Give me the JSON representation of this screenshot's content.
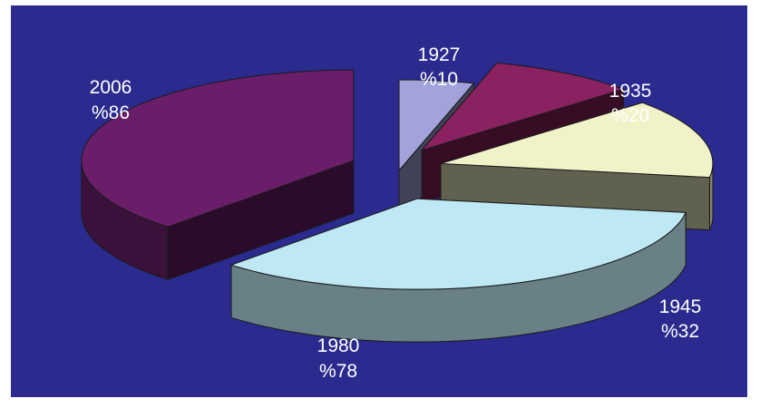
{
  "colors": {
    "background": "#2b2b8f",
    "border": "#ffffff",
    "slice_1927": "#a3a3dc",
    "slice_1935": "#8a2160",
    "slice_1945": "#f2f2c9",
    "slice_1980": "#bde8f4",
    "slice_2006": "#6a1e69"
  },
  "chart_data": {
    "type": "pie",
    "style": "3d-exploded",
    "legend": "none",
    "slices": [
      {
        "year": "1927",
        "label": "%10",
        "value": 10,
        "color": "#a3a3dc"
      },
      {
        "year": "1935",
        "label": "%20",
        "value": 20,
        "color": "#8a2160"
      },
      {
        "year": "1945",
        "label": "%32",
        "value": 32,
        "color": "#f2f2c9"
      },
      {
        "year": "1980",
        "label": "%78",
        "value": 78,
        "color": "#bde8f4"
      },
      {
        "year": "2006",
        "label": "%86",
        "value": 86,
        "color": "#6a1e69"
      }
    ]
  }
}
